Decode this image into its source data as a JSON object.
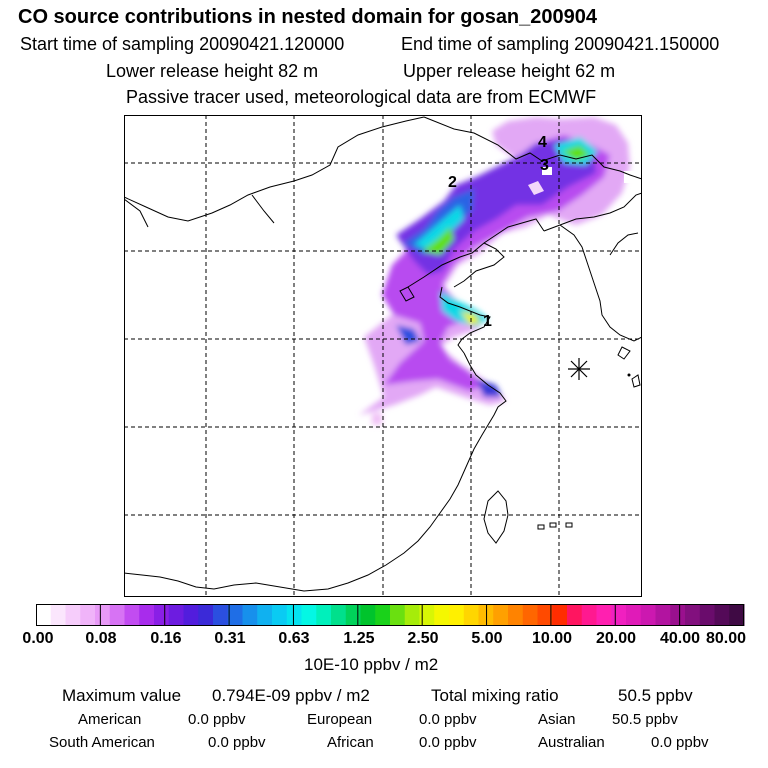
{
  "header": {
    "title": "CO  source contributions in nested domain for gosan_200904",
    "start_label": "Start time of sampling 20090421.120000",
    "end_label": "End time of sampling 20090421.150000",
    "lower_label": "Lower release height   82 m",
    "upper_label": "Upper release height   62 m",
    "passive_label": "Passive tracer used, meteorological data are from ECMWF"
  },
  "map": {
    "markers": [
      "1",
      "2",
      "3",
      "4"
    ],
    "receptor_icon": "asterisk-receptor-icon"
  },
  "colorbar": {
    "ticks": [
      "0.00",
      "0.08",
      "0.16",
      "0.31",
      "0.63",
      "1.25",
      "2.50",
      "5.00",
      "10.00",
      "20.00",
      "40.00",
      "80.00"
    ],
    "unit": "10E-10 ppbv / m2",
    "colors": [
      "#ffffff",
      "#fbe6fd",
      "#f6cdfb",
      "#f0b4f9",
      "#e89af7",
      "#d773f4",
      "#c24cf1",
      "#a82cec",
      "#8a1fe6",
      "#6d1ce0",
      "#521ddd",
      "#3b2ad8",
      "#2b4fe0",
      "#1f6ee6",
      "#1790ec",
      "#10b1f0",
      "#0acbf3",
      "#05e3f0",
      "#04f7e4",
      "#00f0bb",
      "#00e08c",
      "#00d25a",
      "#00c42c",
      "#1ad21a",
      "#6ae010",
      "#a6ec0a",
      "#d8f605",
      "#f5f700",
      "#fff000",
      "#ffd600",
      "#ffbb00",
      "#ffa000",
      "#ff8300",
      "#ff6600",
      "#ff4a00",
      "#ff2d00",
      "#ff1560",
      "#ff1990",
      "#ff20b0",
      "#f020c0",
      "#e01bb8",
      "#cc18b0",
      "#b214a0",
      "#9a108e",
      "#82107e",
      "#6a0c6c",
      "#540a58",
      "#3f0a44"
    ]
  },
  "stats": {
    "max_label": "Maximum value",
    "max_value": "0.794E-09 ppbv / m2",
    "total_label": "Total mixing ratio",
    "total_value": "50.5 ppbv"
  },
  "regions": {
    "american_label": "American",
    "american_value": "0.0 ppbv",
    "european_label": "European",
    "european_value": "0.0 ppbv",
    "asian_label": "Asian",
    "asian_value": "50.5 ppbv",
    "south_american_label": "South American",
    "south_american_value": "0.0 ppbv",
    "african_label": "African",
    "african_value": "0.0 ppbv",
    "australian_label": "Australian",
    "australian_value": "0.0 ppbv"
  }
}
